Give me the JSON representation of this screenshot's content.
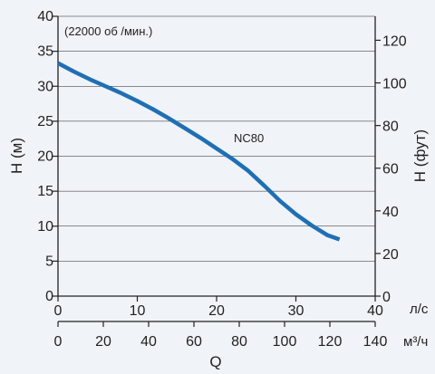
{
  "chart_data": {
    "type": "line",
    "note": "(22000 об /мин.)",
    "series": [
      {
        "name": "NC80",
        "color": "#1f6fb4",
        "x_ls": [
          0,
          2,
          4,
          6,
          8,
          10,
          12,
          14,
          16,
          18,
          20,
          22,
          24,
          26,
          28,
          30,
          32,
          34,
          35.5
        ],
        "y_m": [
          33.3,
          32.1,
          31.0,
          30.0,
          29.0,
          27.9,
          26.7,
          25.4,
          24.0,
          22.6,
          21.1,
          19.6,
          17.9,
          15.8,
          13.6,
          11.7,
          10.1,
          8.7,
          8.1
        ]
      }
    ],
    "y_left": {
      "label": "H (м)",
      "ylim": [
        0,
        40
      ],
      "ticks": [
        "0",
        "5",
        "10",
        "15",
        "20",
        "25",
        "30",
        "35",
        "40"
      ]
    },
    "y_right": {
      "label": "H (фут)",
      "ticks": [
        "0",
        "20",
        "40",
        "60",
        "80",
        "100",
        "120"
      ],
      "tick_values": [
        0,
        20,
        40,
        60,
        80,
        100,
        120
      ]
    },
    "x_top": {
      "unit": "л/с",
      "xlim": [
        0,
        40
      ],
      "ticks": [
        "0",
        "10",
        "20",
        "30",
        "40"
      ],
      "tick_values": [
        0,
        10,
        20,
        30,
        40
      ]
    },
    "x_bottom": {
      "unit": "м³/ч",
      "xlim": [
        0,
        140
      ],
      "ticks": [
        "0",
        "20",
        "40",
        "60",
        "80",
        "100",
        "120",
        "140"
      ],
      "tick_values": [
        0,
        20,
        40,
        60,
        80,
        100,
        120,
        140
      ]
    },
    "xlabel": "Q",
    "grid": "horizontal"
  }
}
